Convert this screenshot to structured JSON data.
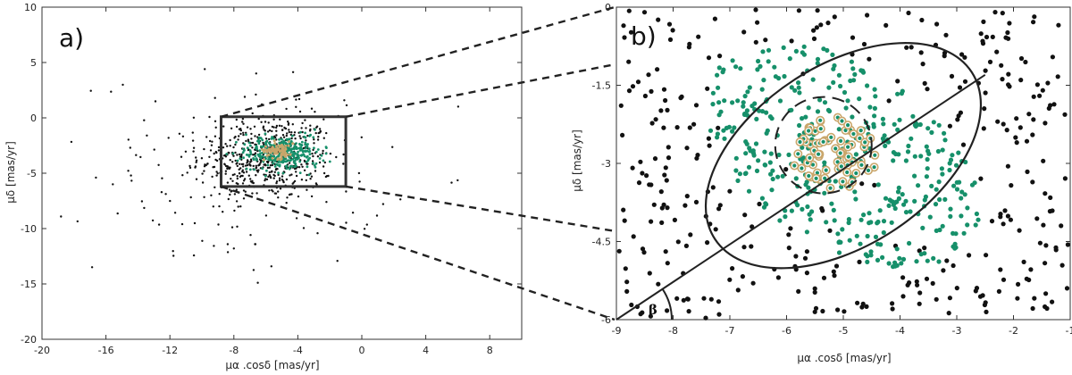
{
  "colors": {
    "field": "#111111",
    "members": "#16906a",
    "core_fill": "#16906a",
    "core_ring": "#c9a66b",
    "frame": "#333333"
  },
  "chart_data": [
    {
      "panel_label": "a)",
      "type": "scatter",
      "xlabel": "μα .cosδ [mas/yr]",
      "ylabel": "μδ [mas/yr]",
      "xlim": [
        -20,
        10
      ],
      "ylim": [
        -20,
        10
      ],
      "xticks": [
        -20,
        -16,
        -12,
        -8,
        -4,
        0,
        4,
        8
      ],
      "yticks": [
        10,
        5,
        0,
        -5,
        -10,
        -15,
        -20
      ],
      "selection_box": {
        "x": [
          -8.8,
          -1.0
        ],
        "y": [
          -6.2,
          0.1
        ]
      },
      "series": [
        {
          "role": "field",
          "count": 650,
          "note_center": [
            -6.0,
            -3.5
          ],
          "spread": [
            2.6,
            2.4
          ]
        },
        {
          "role": "members",
          "count": 330,
          "center": [
            -5.0,
            -3.1
          ],
          "spread": [
            1.3,
            0.7
          ]
        },
        {
          "role": "core",
          "count": 80,
          "center": [
            -5.2,
            -2.9
          ],
          "spread": [
            0.45,
            0.4
          ]
        }
      ]
    },
    {
      "panel_label": "b)",
      "type": "scatter",
      "xlabel": "μα .cosδ [mas/yr]",
      "ylabel": "μδ [mas/yr]",
      "xlim": [
        -9,
        -1
      ],
      "ylim": [
        -6,
        0
      ],
      "xticks": [
        -9,
        -8,
        -7,
        -6,
        -5,
        -4,
        -3,
        -2,
        -1
      ],
      "yticks": [
        0,
        -1.5,
        -3,
        -4.5,
        -6
      ],
      "ellipse": {
        "center": [
          -5.0,
          -2.85
        ],
        "semi_axes": [
          3.0,
          1.65
        ],
        "angle_deg": 33
      },
      "core_circle": {
        "center": [
          -5.35,
          -2.65
        ],
        "radius": 0.85
      },
      "major_axis_line": {
        "from": [
          -9.0,
          -6.0
        ],
        "to": [
          -2.5,
          -1.3
        ]
      },
      "angle_label": "β",
      "series": [
        {
          "role": "field",
          "count": 330
        },
        {
          "role": "members",
          "count": 400
        },
        {
          "role": "core",
          "count": 75
        }
      ]
    }
  ]
}
